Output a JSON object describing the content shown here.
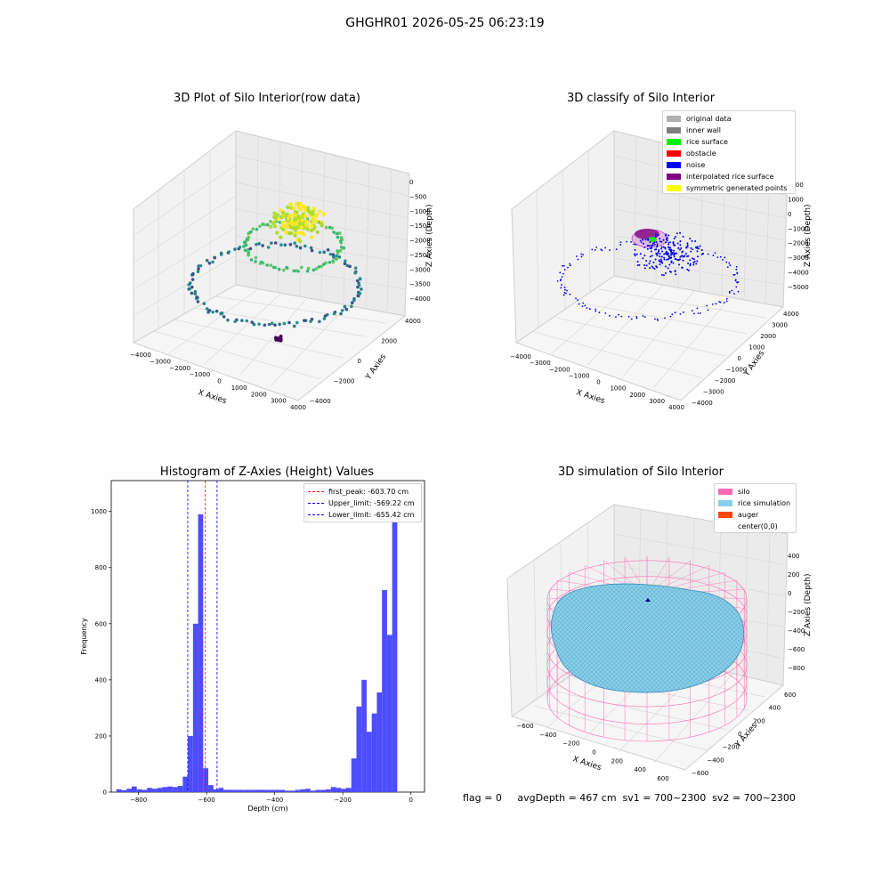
{
  "figure": {
    "title": "GHGHR01 2026-05-25 06:23:19"
  },
  "panels": {
    "raw": {
      "title": "3D Plot of Silo Interior(row data)",
      "xlabel": "X Axies",
      "ylabel": "Y Axies",
      "zlabel": "Z Axies (Depth)",
      "xticks": [
        "-4000",
        "-3000",
        "-2000",
        "-1000",
        "0",
        "1000",
        "2000",
        "3000",
        "4000"
      ],
      "yticks": [
        "-4000",
        "-2000",
        "0",
        "2000",
        "4000"
      ],
      "zticks": [
        "0",
        "-500",
        "-1000",
        "-1500",
        "-2000",
        "-2500",
        "-3000",
        "-3500",
        "-4000"
      ]
    },
    "classify": {
      "title": "3D classify of Silo Interior",
      "xlabel": "X Axies",
      "ylabel": "Y Axies",
      "zlabel": "Z Axies (Depth)",
      "xticks": [
        "-4000",
        "-3000",
        "-2000",
        "-1000",
        "0",
        "1000",
        "2000",
        "3000",
        "4000"
      ],
      "yticks": [
        "-4000",
        "-3000",
        "-2000",
        "-1000",
        "0",
        "1000",
        "2000",
        "3000",
        "4000"
      ],
      "zticks": [
        "2000",
        "1000",
        "0",
        "-1000",
        "-2000",
        "-3000",
        "-4000",
        "-5000"
      ],
      "legend": [
        {
          "label": "original data",
          "color": "#b0b0b0"
        },
        {
          "label": "inner wall",
          "color": "#808080"
        },
        {
          "label": "rice surface",
          "color": "#00ee00"
        },
        {
          "label": "obstacle",
          "color": "#ff0000"
        },
        {
          "label": "noise",
          "color": "#0000ff"
        },
        {
          "label": "interpolated rice surface",
          "color": "#800080"
        },
        {
          "label": "symmetric generated points",
          "color": "#ffff00"
        }
      ]
    },
    "simulation": {
      "title": "3D simulation of Silo Interior",
      "xlabel": "X Axies",
      "ylabel": "Y Axies",
      "zlabel": "Z Axies (Depth)",
      "xticks": [
        "-600",
        "-400",
        "-200",
        "0",
        "200",
        "400",
        "600"
      ],
      "yticks": [
        "-600",
        "-400",
        "-200",
        "0",
        "200",
        "400",
        "600"
      ],
      "zticks": [
        "400",
        "200",
        "0",
        "-200",
        "-400",
        "-600",
        "-800"
      ],
      "legend": [
        {
          "label": "silo",
          "color": "#ff69b4"
        },
        {
          "label": "rice simulation",
          "color": "#87ceeb"
        },
        {
          "label": "auger",
          "color": "#ff4500"
        },
        {
          "label": "center(0,0)",
          "color": ""
        }
      ]
    }
  },
  "chart_data": {
    "type": "bar",
    "title": "Histogram of Z-Axies (Height) Values",
    "xlabel": "Depth (cm)",
    "ylabel": "Frequency",
    "xlim": [
      -880,
      40
    ],
    "ylim": [
      0,
      1110
    ],
    "xticks": [
      -800,
      -600,
      -400,
      -200,
      0
    ],
    "yticks": [
      0,
      200,
      400,
      600,
      800,
      1000
    ],
    "bin_width": 15,
    "bins": [
      [
        -865,
        10
      ],
      [
        -850,
        7
      ],
      [
        -835,
        12
      ],
      [
        -820,
        20
      ],
      [
        -805,
        10
      ],
      [
        -790,
        8
      ],
      [
        -775,
        15
      ],
      [
        -760,
        12
      ],
      [
        -745,
        15
      ],
      [
        -730,
        18
      ],
      [
        -715,
        20
      ],
      [
        -700,
        18
      ],
      [
        -685,
        22
      ],
      [
        -670,
        55
      ],
      [
        -655,
        200
      ],
      [
        -640,
        600
      ],
      [
        -625,
        990
      ],
      [
        -610,
        85
      ],
      [
        -595,
        25
      ],
      [
        -580,
        10
      ],
      [
        -565,
        15
      ],
      [
        -550,
        8
      ],
      [
        -535,
        8
      ],
      [
        -520,
        8
      ],
      [
        -505,
        8
      ],
      [
        -490,
        8
      ],
      [
        -475,
        8
      ],
      [
        -460,
        8
      ],
      [
        -445,
        8
      ],
      [
        -430,
        8
      ],
      [
        -415,
        8
      ],
      [
        -400,
        8
      ],
      [
        -385,
        8
      ],
      [
        -370,
        5
      ],
      [
        -355,
        5
      ],
      [
        -340,
        8
      ],
      [
        -325,
        10
      ],
      [
        -310,
        12
      ],
      [
        -295,
        5
      ],
      [
        -280,
        8
      ],
      [
        -265,
        8
      ],
      [
        -250,
        10
      ],
      [
        -235,
        18
      ],
      [
        -220,
        15
      ],
      [
        -205,
        12
      ],
      [
        -190,
        15
      ],
      [
        -175,
        120
      ],
      [
        -160,
        305
      ],
      [
        -145,
        400
      ],
      [
        -130,
        215
      ],
      [
        -115,
        280
      ],
      [
        -100,
        355
      ],
      [
        -85,
        720
      ],
      [
        -70,
        560
      ],
      [
        -55,
        1090
      ]
    ],
    "vlines": [
      {
        "label": "first_peak: -603.70 cm",
        "x": -603.7,
        "color": "#ff0000"
      },
      {
        "label": "Upper_limit: -569.22 cm",
        "x": -569.22,
        "color": "#0000ff"
      },
      {
        "label": "Lower_limit: -655.42 cm",
        "x": -655.42,
        "color": "#0000ff"
      }
    ],
    "bar_color": "#4d4dff",
    "legend_position": "upper right"
  },
  "status": {
    "text": "flag = 0     avgDepth = 467 cm  sv1 = 700~2300  sv2 = 700~2300"
  }
}
